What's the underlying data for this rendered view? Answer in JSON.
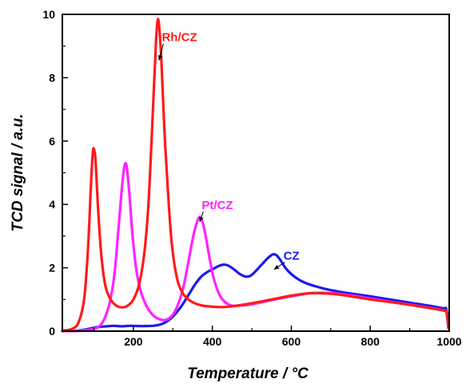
{
  "chart_data": {
    "type": "line",
    "title": "",
    "xlabel": "Temperature / °C",
    "ylabel": "TCD signal / a.u.",
    "xlim": [
      20,
      1000
    ],
    "ylim": [
      0,
      10
    ],
    "x_ticks": [
      200,
      400,
      600,
      800,
      1000
    ],
    "y_ticks": [
      0,
      2,
      4,
      6,
      8,
      10
    ],
    "grid": false,
    "legend": "none",
    "series": [
      {
        "name": "Rh/CZ",
        "color": "#ff1a1a",
        "annotation": {
          "text": "Rh/CZ",
          "x": 272,
          "y": 9.15,
          "arrow_to": [
            265,
            8.55
          ]
        },
        "points": [
          [
            20,
            0.02
          ],
          [
            40,
            0.05
          ],
          [
            60,
            0.25
          ],
          [
            75,
            1.0
          ],
          [
            85,
            2.6
          ],
          [
            92,
            4.5
          ],
          [
            97,
            5.6
          ],
          [
            100,
            5.75
          ],
          [
            104,
            5.4
          ],
          [
            110,
            4.0
          ],
          [
            118,
            2.5
          ],
          [
            128,
            1.5
          ],
          [
            140,
            1.05
          ],
          [
            155,
            0.82
          ],
          [
            170,
            0.75
          ],
          [
            185,
            0.8
          ],
          [
            200,
            1.0
          ],
          [
            215,
            1.5
          ],
          [
            228,
            2.5
          ],
          [
            238,
            4.0
          ],
          [
            246,
            6.0
          ],
          [
            253,
            8.0
          ],
          [
            258,
            9.3
          ],
          [
            262,
            9.85
          ],
          [
            266,
            9.5
          ],
          [
            271,
            8.5
          ],
          [
            278,
            6.5
          ],
          [
            287,
            4.5
          ],
          [
            297,
            2.8
          ],
          [
            310,
            1.7
          ],
          [
            325,
            1.2
          ],
          [
            345,
            0.95
          ],
          [
            370,
            0.82
          ],
          [
            400,
            0.77
          ],
          [
            430,
            0.76
          ],
          [
            460,
            0.8
          ],
          [
            500,
            0.88
          ],
          [
            550,
            1.0
          ],
          [
            600,
            1.12
          ],
          [
            650,
            1.2
          ],
          [
            700,
            1.18
          ],
          [
            750,
            1.1
          ],
          [
            800,
            1.0
          ],
          [
            850,
            0.92
          ],
          [
            900,
            0.83
          ],
          [
            950,
            0.73
          ],
          [
            985,
            0.65
          ],
          [
            993,
            0.6
          ],
          [
            998,
            0.1
          ]
        ]
      },
      {
        "name": "Pt/CZ",
        "color": "#ff22ff",
        "annotation": {
          "text": "Pt/CZ",
          "x": 373,
          "y": 3.85,
          "arrow_to": [
            368,
            3.45
          ]
        },
        "points": [
          [
            20,
            0.0
          ],
          [
            60,
            0.01
          ],
          [
            90,
            0.05
          ],
          [
            110,
            0.12
          ],
          [
            125,
            0.35
          ],
          [
            140,
            0.9
          ],
          [
            152,
            1.8
          ],
          [
            162,
            3.2
          ],
          [
            170,
            4.4
          ],
          [
            176,
            5.1
          ],
          [
            180,
            5.3
          ],
          [
            184,
            5.1
          ],
          [
            190,
            4.3
          ],
          [
            198,
            3.0
          ],
          [
            208,
            1.9
          ],
          [
            220,
            1.2
          ],
          [
            235,
            0.75
          ],
          [
            250,
            0.5
          ],
          [
            265,
            0.38
          ],
          [
            280,
            0.35
          ],
          [
            295,
            0.45
          ],
          [
            310,
            0.75
          ],
          [
            325,
            1.3
          ],
          [
            338,
            2.1
          ],
          [
            350,
            2.9
          ],
          [
            360,
            3.4
          ],
          [
            368,
            3.6
          ],
          [
            375,
            3.45
          ],
          [
            383,
            3.0
          ],
          [
            393,
            2.3
          ],
          [
            405,
            1.6
          ],
          [
            420,
            1.1
          ],
          [
            440,
            0.85
          ],
          [
            460,
            0.8
          ],
          [
            500,
            0.85
          ],
          [
            550,
            0.98
          ],
          [
            600,
            1.1
          ],
          [
            650,
            1.2
          ],
          [
            700,
            1.2
          ],
          [
            750,
            1.13
          ],
          [
            800,
            1.03
          ],
          [
            850,
            0.93
          ],
          [
            900,
            0.84
          ],
          [
            950,
            0.74
          ],
          [
            985,
            0.66
          ],
          [
            993,
            0.62
          ],
          [
            998,
            0.1
          ]
        ]
      },
      {
        "name": "CZ",
        "color": "#1a1aee",
        "annotation": {
          "text": "CZ",
          "x": 580,
          "y": 2.25,
          "arrow_to": [
            556,
            1.95
          ]
        },
        "points": [
          [
            20,
            0.0
          ],
          [
            60,
            0.02
          ],
          [
            90,
            0.08
          ],
          [
            110,
            0.13
          ],
          [
            130,
            0.15
          ],
          [
            150,
            0.17
          ],
          [
            170,
            0.15
          ],
          [
            190,
            0.17
          ],
          [
            210,
            0.16
          ],
          [
            230,
            0.16
          ],
          [
            250,
            0.17
          ],
          [
            265,
            0.2
          ],
          [
            280,
            0.27
          ],
          [
            295,
            0.4
          ],
          [
            310,
            0.6
          ],
          [
            325,
            0.85
          ],
          [
            340,
            1.15
          ],
          [
            355,
            1.45
          ],
          [
            370,
            1.7
          ],
          [
            385,
            1.85
          ],
          [
            400,
            1.95
          ],
          [
            415,
            2.05
          ],
          [
            428,
            2.1
          ],
          [
            440,
            2.07
          ],
          [
            455,
            1.95
          ],
          [
            470,
            1.8
          ],
          [
            485,
            1.72
          ],
          [
            497,
            1.75
          ],
          [
            510,
            1.9
          ],
          [
            525,
            2.1
          ],
          [
            540,
            2.3
          ],
          [
            553,
            2.42
          ],
          [
            562,
            2.4
          ],
          [
            572,
            2.25
          ],
          [
            585,
            2.0
          ],
          [
            600,
            1.8
          ],
          [
            620,
            1.62
          ],
          [
            640,
            1.5
          ],
          [
            660,
            1.42
          ],
          [
            690,
            1.32
          ],
          [
            720,
            1.25
          ],
          [
            760,
            1.17
          ],
          [
            800,
            1.1
          ],
          [
            850,
            1.0
          ],
          [
            900,
            0.9
          ],
          [
            950,
            0.8
          ],
          [
            985,
            0.72
          ],
          [
            993,
            0.68
          ],
          [
            998,
            0.1
          ]
        ]
      }
    ]
  }
}
